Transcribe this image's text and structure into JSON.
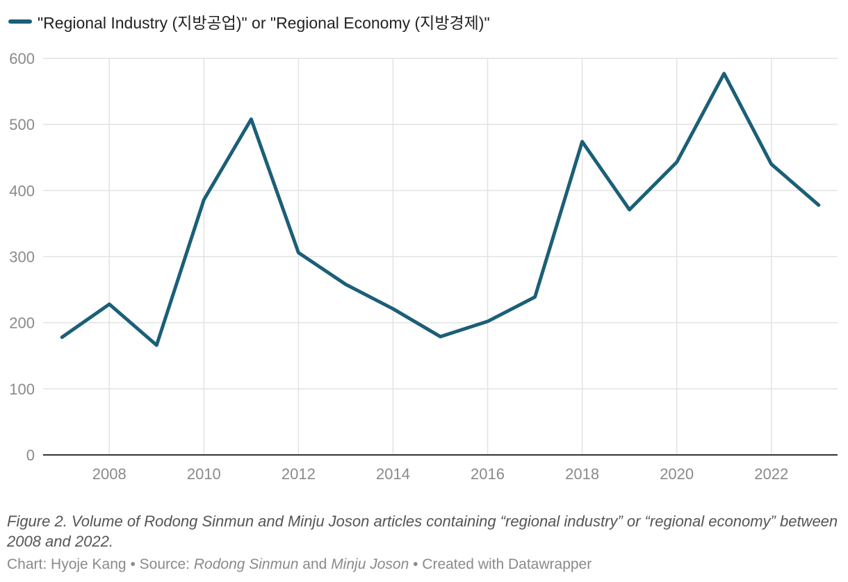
{
  "chart_data": {
    "type": "line",
    "title": "",
    "xlabel": "",
    "ylabel": "",
    "x": [
      2007,
      2008,
      2009,
      2010,
      2011,
      2012,
      2013,
      2014,
      2015,
      2016,
      2017,
      2018,
      2019,
      2020,
      2021,
      2022,
      2023
    ],
    "series": [
      {
        "name": "\"Regional Industry (지방공업)\" or \"Regional Economy (지방경제)\"",
        "color": "#1b5f77",
        "values": [
          178,
          228,
          166,
          386,
          508,
          306,
          258,
          221,
          179,
          202,
          239,
          474,
          371,
          443,
          577,
          440,
          378
        ]
      }
    ],
    "xlim": [
      2006.6,
      2023.4
    ],
    "ylim": [
      0,
      600
    ],
    "x_ticks": [
      "2008",
      "2010",
      "2012",
      "2014",
      "2016",
      "2018",
      "2020",
      "2022"
    ],
    "y_ticks": [
      "0",
      "100",
      "200",
      "300",
      "400",
      "500",
      "600"
    ],
    "grid": true,
    "legend_position": "top-left"
  },
  "caption": "Figure 2. Volume of Rodong Sinmun and Minju Joson articles containing “regional industry” or “regional economy” between 2008 and 2022.",
  "footer": {
    "chart_prefix": "Chart: ",
    "author": "Hyoje Kang",
    "separator1": " • ",
    "source_prefix": "Source: ",
    "source1": "Rodong Sinmun",
    "and_word": " and ",
    "source2": "Minju Joson",
    "separator2": " • ",
    "created_with": "Created with Datawrapper"
  }
}
